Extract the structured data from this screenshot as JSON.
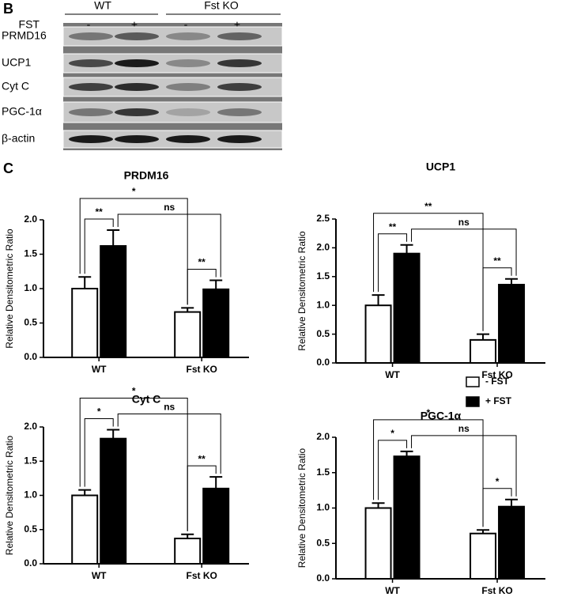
{
  "panel_labels": {
    "blot": "B",
    "charts": "C"
  },
  "blot": {
    "groups": [
      "WT",
      "Fst KO"
    ],
    "treatment_label": "FST",
    "lane_signs": [
      "-",
      "+",
      "-",
      "+"
    ],
    "rows": [
      "PRMD16",
      "UCP1",
      "Cyt C",
      "PGC-1α",
      "β-actin"
    ]
  },
  "chart_data": [
    {
      "type": "bar",
      "title": "PRDM16",
      "y_label": "Relative Densitometric Ratio",
      "categories": [
        "WT",
        "Fst KO"
      ],
      "series": [
        {
          "color": "#ffffff",
          "values": [
            1.0,
            0.66
          ],
          "errors": [
            0.17,
            0.06
          ]
        },
        {
          "color": "#000000",
          "values": [
            1.62,
            0.99
          ],
          "errors": [
            0.23,
            0.13
          ]
        }
      ],
      "ylim": [
        0,
        2.0
      ],
      "yticks": [
        {
          "value": 0,
          "label": "0.0"
        },
        {
          "value": 0.5,
          "label": "0.5"
        },
        {
          "value": 1,
          "label": "1.0"
        },
        {
          "value": 1.5,
          "label": "1.5"
        },
        {
          "value": 2,
          "label": "2.0"
        }
      ],
      "annotations": [
        "**",
        "*",
        "ns",
        "**"
      ]
    },
    {
      "type": "bar",
      "title": "UCP1",
      "y_label": "Relative Densitometric Ratio",
      "categories": [
        "WT",
        "Fst KO"
      ],
      "series": [
        {
          "color": "#ffffff",
          "values": [
            1.0,
            0.4
          ],
          "errors": [
            0.18,
            0.1
          ]
        },
        {
          "color": "#000000",
          "values": [
            1.9,
            1.36
          ],
          "errors": [
            0.15,
            0.1
          ]
        }
      ],
      "ylim": [
        0,
        2.5
      ],
      "yticks": [
        {
          "value": 0,
          "label": "0.0"
        },
        {
          "value": 0.5,
          "label": "0.5"
        },
        {
          "value": 1,
          "label": "1.0"
        },
        {
          "value": 1.5,
          "label": "1.5"
        },
        {
          "value": 2,
          "label": "2.0"
        },
        {
          "value": 2.5,
          "label": "2.5"
        }
      ],
      "annotations": [
        "**",
        "**",
        "ns",
        "**"
      ]
    },
    {
      "type": "bar",
      "title": "Cyt C",
      "y_label": "Relative Densitometric Ratio",
      "categories": [
        "WT",
        "Fst KO"
      ],
      "series": [
        {
          "color": "#ffffff",
          "values": [
            1.0,
            0.37
          ],
          "errors": [
            0.08,
            0.06
          ]
        },
        {
          "color": "#000000",
          "values": [
            1.83,
            1.1
          ],
          "errors": [
            0.13,
            0.17
          ]
        }
      ],
      "ylim": [
        0,
        2.0
      ],
      "yticks": [
        {
          "value": 0,
          "label": "0.0"
        },
        {
          "value": 0.5,
          "label": "0.5"
        },
        {
          "value": 1,
          "label": "1.0"
        },
        {
          "value": 1.5,
          "label": "1.5"
        },
        {
          "value": 2,
          "label": "2.0"
        }
      ],
      "annotations": [
        "*",
        "*",
        "ns",
        "**"
      ]
    },
    {
      "type": "bar",
      "title": "PGC-1α",
      "y_label": "Relative Densitometric Ratio",
      "categories": [
        "WT",
        "Fst KO"
      ],
      "series": [
        {
          "name": "- FST",
          "color": "#ffffff",
          "values": [
            1.0,
            0.64
          ],
          "errors": [
            0.07,
            0.05
          ]
        },
        {
          "name": "+ FST",
          "color": "#000000",
          "values": [
            1.73,
            1.02
          ],
          "errors": [
            0.07,
            0.1
          ]
        }
      ],
      "ylim": [
        0,
        2.0
      ],
      "yticks": [
        {
          "value": 0,
          "label": "0.0"
        },
        {
          "value": 0.5,
          "label": "0.5"
        },
        {
          "value": 1,
          "label": "1.0"
        },
        {
          "value": 1.5,
          "label": "1.5"
        },
        {
          "value": 2,
          "label": "2.0"
        }
      ],
      "annotations": [
        "*",
        "*",
        "ns",
        "*"
      ],
      "legend": "top-right"
    }
  ]
}
